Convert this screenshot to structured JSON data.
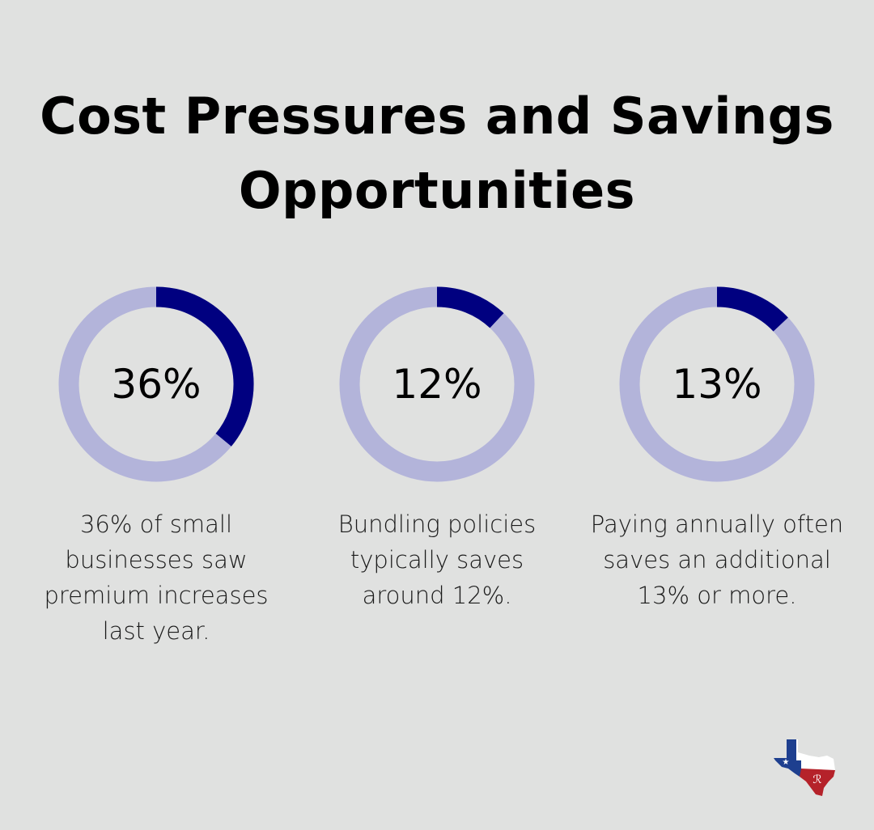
{
  "title": "Cost Pressures and Savings Opportunities",
  "colors": {
    "background": "#e0e1e0",
    "ring_track": "#b3b4da",
    "ring_fill": "#000080",
    "logo_blue": "#1e3f8f",
    "logo_red": "#b5222a"
  },
  "chart_data": {
    "type": "donut",
    "max": 100,
    "items": [
      {
        "value": 36,
        "label": "36%",
        "caption": "36% of small businesses saw premium increases last year."
      },
      {
        "value": 12,
        "label": "12%",
        "caption": "Bundling policies typically saves around 12%."
      },
      {
        "value": 13,
        "label": "13%",
        "caption": "Paying annually often saves an additional 13% or more."
      }
    ]
  },
  "logo": {
    "icon": "texas-map-logo"
  }
}
